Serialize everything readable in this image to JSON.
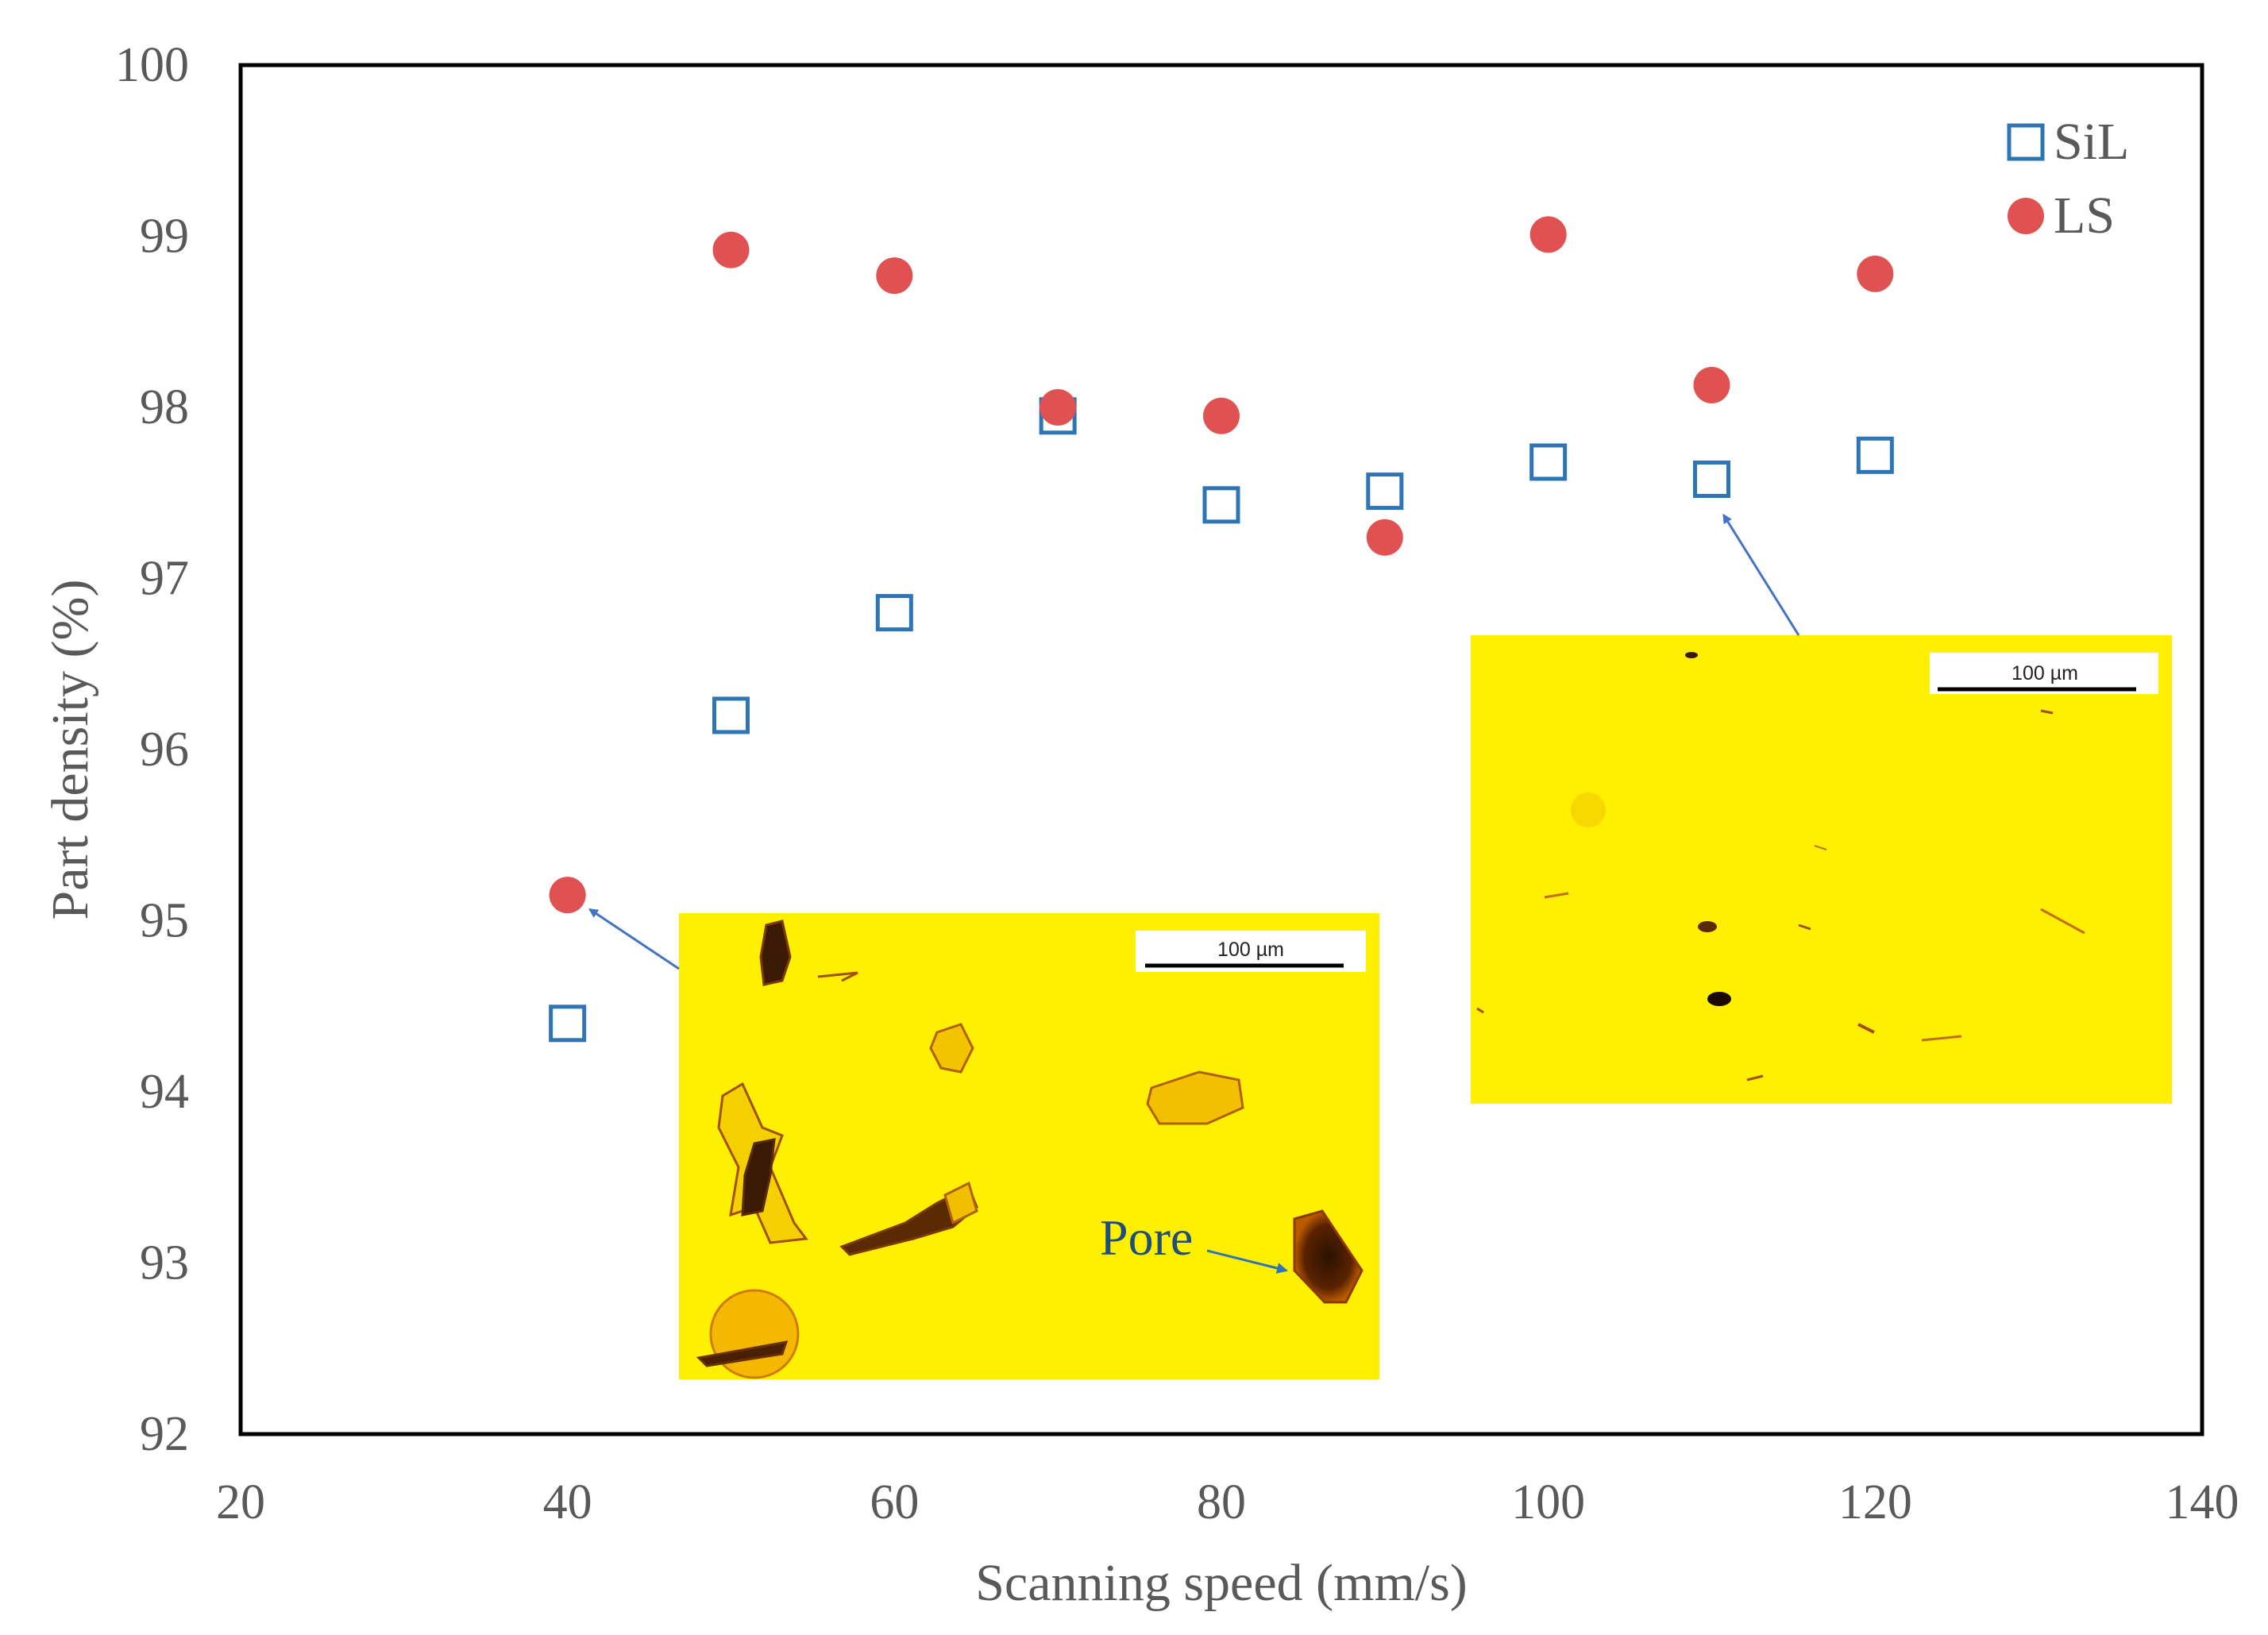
{
  "colors": {
    "sil": "#2E75B6",
    "ls": "#E05252",
    "axis": "#000000",
    "tick_text": "#595959",
    "micrograph_bg": "#FFEF00",
    "pore_label": "#1F4E79",
    "arrow": "#4472C4"
  },
  "chart_data": {
    "type": "scatter",
    "title": "",
    "xlabel": "Scanning speed (mm/s)",
    "ylabel": "Part density (%)",
    "xlim": [
      20,
      140
    ],
    "ylim": [
      92,
      100
    ],
    "xticks": [
      20,
      40,
      60,
      80,
      100,
      120,
      140
    ],
    "yticks": [
      92,
      93,
      94,
      95,
      96,
      97,
      98,
      99,
      100
    ],
    "legend_position": "top-right",
    "series": [
      {
        "name": "SiL",
        "marker": "open-square",
        "x": [
          40,
          50,
          60,
          70,
          80,
          90,
          100,
          110,
          120
        ],
        "y": [
          94.4,
          96.2,
          96.8,
          97.95,
          97.43,
          97.51,
          97.68,
          97.58,
          97.72
        ]
      },
      {
        "name": "LS",
        "marker": "filled-circle",
        "x": [
          40,
          50,
          60,
          70,
          80,
          90,
          100,
          110,
          120
        ],
        "y": [
          95.15,
          98.92,
          98.77,
          98.0,
          97.95,
          97.24,
          99.01,
          98.13,
          98.78
        ]
      }
    ]
  },
  "insets": [
    {
      "name": "micrograph-low-speed",
      "points_to": {
        "series": "LS",
        "x": 40,
        "y": 95.15
      },
      "scale_bar_label": "100 µm",
      "annotation": "Pore"
    },
    {
      "name": "micrograph-high-speed",
      "points_to": {
        "series": "SiL",
        "x": 110,
        "y": 97.58
      },
      "scale_bar_label": "100 µm"
    }
  ]
}
